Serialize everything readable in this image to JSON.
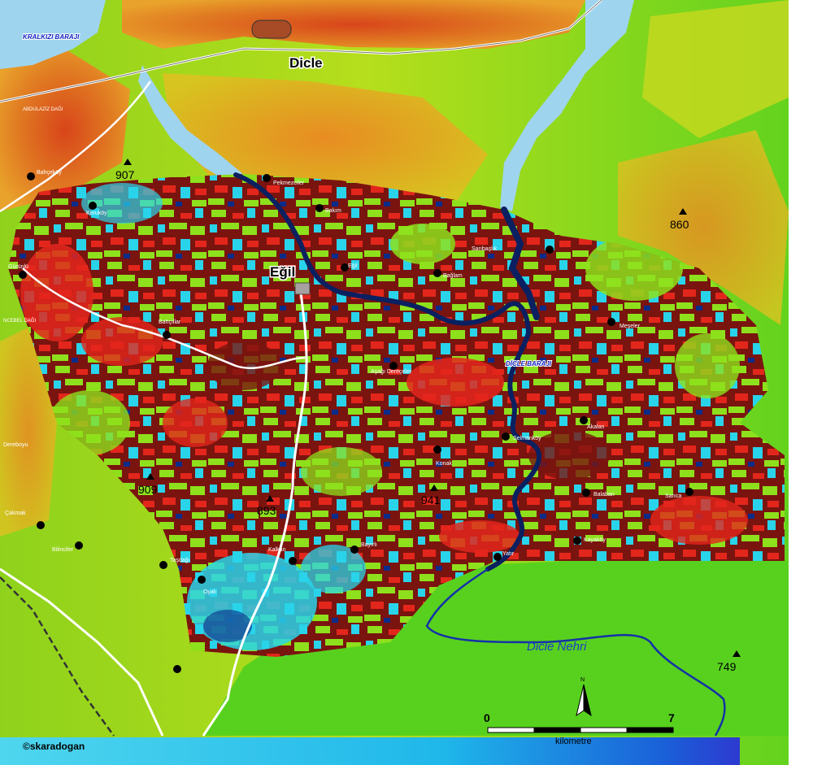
{
  "map": {
    "towns": {
      "dicle": "Dicle",
      "egil": "Eğil"
    },
    "dams": {
      "kralkizi": "KRALKIZI BARAJI",
      "dicle": "DİCLE BARAJI"
    },
    "river": "Dicle Nehri",
    "mountain": "ABDULAZİZ DAĞI",
    "mountain2": "NCEBEL DAĞI",
    "peaks": [
      "907",
      "860",
      "909",
      "893",
      "941",
      "749"
    ],
    "villages": [
      "Bahçeköy",
      "Koruköy",
      "Pekmezciler",
      "Bakım",
      "Gürünlü",
      "Eğil",
      "Sarıbaşlık",
      "Bağlam",
      "Bahçıllar",
      "Meşeler",
      "Aşağı Dereçeler",
      "Akalan",
      "Selmanköy",
      "Konak",
      "Dereboyu",
      "Çakmak",
      "Bilinciler",
      "Taşdağı",
      "Oyalı",
      "Kalkan",
      "Bayırlı",
      "Yatır",
      "Balaban",
      "Sarıca",
      "Kayaköy"
    ],
    "scale": {
      "start": "0",
      "end": "7",
      "unit": "kilometre"
    },
    "north": "N",
    "credit": "©skaradogan",
    "colors": {
      "red": "#e3261c",
      "maroon": "#6e0e0d",
      "lime": "#8ee01c",
      "cyan": "#29d4ea",
      "navy": "#0a2c8a",
      "water": "#9fd4ee",
      "river": "#0a2060"
    }
  }
}
